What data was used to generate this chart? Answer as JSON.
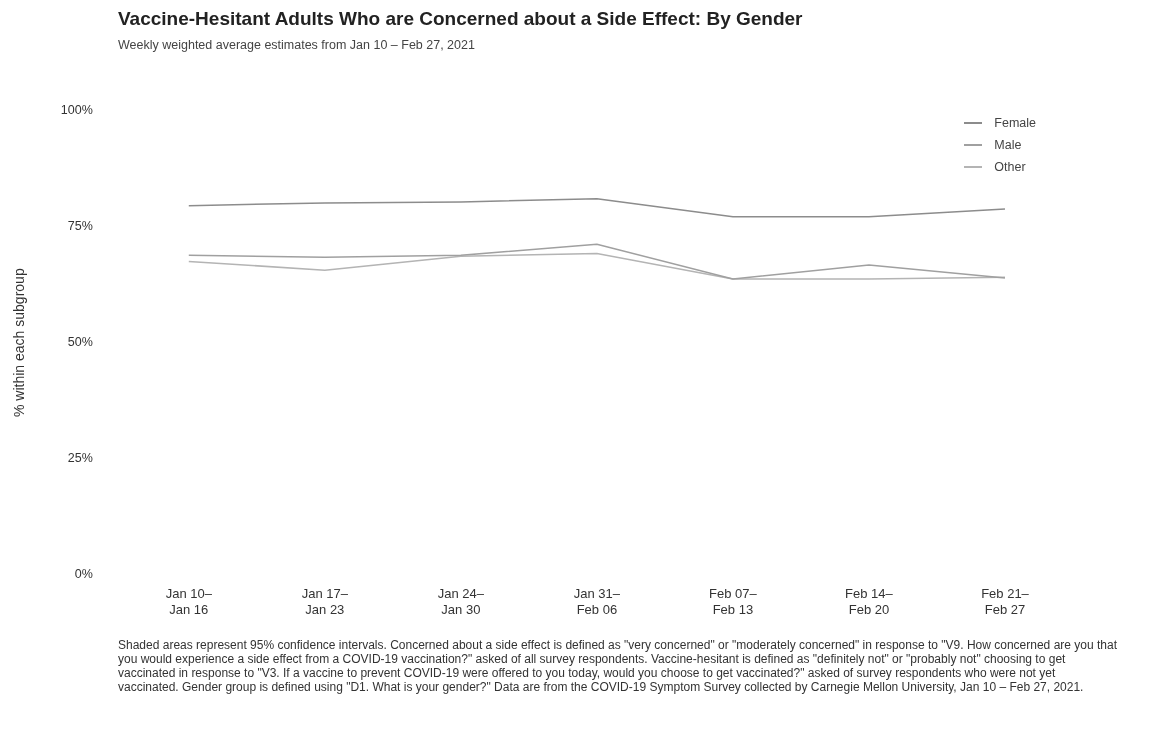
{
  "chart_data": {
    "type": "line",
    "title": "Vaccine-Hesitant Adults Who are Concerned about a Side Effect: By Gender",
    "subtitle": "Weekly weighted average estimates from Jan 10 – Feb 27, 2021",
    "ylabel": "% within each subgroup",
    "categories": [
      "Jan 10–\nJan 16",
      "Jan 17–\nJan 23",
      "Jan 24–\nJan 30",
      "Jan 31–\nFeb 06",
      "Feb 07–\nFeb 13",
      "Feb 14–\nFeb 20",
      "Feb 21–\nFeb 27"
    ],
    "series": [
      {
        "name": "Female",
        "color": "#8c8c8c",
        "values": [
          79.5,
          80.1,
          80.3,
          81,
          77.1,
          77.1,
          78.8
        ]
      },
      {
        "name": "Male",
        "color": "#a0a0a0",
        "values": [
          68.8,
          68.4,
          68.8,
          71.2,
          63.7,
          66.7,
          63.9
        ]
      },
      {
        "name": "Other",
        "color": "#b4b4b4",
        "values": [
          67.5,
          65.6,
          68.6,
          69.2,
          63.7,
          63.7,
          64.1
        ]
      }
    ],
    "ylim": [
      0,
      100
    ],
    "yticks": [
      {
        "value": 0,
        "label": "0%"
      },
      {
        "value": 25,
        "label": "25%"
      },
      {
        "value": 50,
        "label": "50%"
      },
      {
        "value": 75,
        "label": "75%"
      },
      {
        "value": 100,
        "label": "100%"
      }
    ],
    "grid": false,
    "legend": "top right",
    "marker": "none",
    "line_style": "solid",
    "annotations": [
      "Shaded areas represent 95% confidence intervals. Concerned about a side effect is defined as \"very concerned\" or \"moderately concerned\" in response to \"V9. How concerned are you that you would experience a side effect from a COVID-19 vaccination?\" asked of all survey respondents. Vaccine-hesitant is defined as \"definitely not\" or \"probably not\" choosing to get vaccinated in response to \"V3. If a vaccine to prevent COVID-19 were offered to you today, would you choose to get vaccinated?\" asked of survey respondents who were not yet vaccinated. Gender group is defined using \"D1. What is your gender?\" Data are from the COVID-19 Symptom Survey collected by Carnegie Mellon University, Jan 10 – Feb 27, 2021."
    ]
  }
}
